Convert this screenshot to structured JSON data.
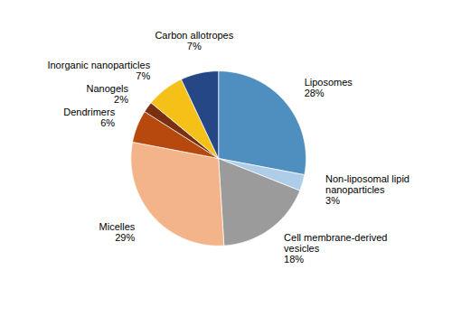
{
  "chart_data": {
    "type": "pie",
    "categories": [
      "Liposomes",
      "Non-liposomal lipid\nnanoparticles",
      "Cell membrane-derived\nvesicles",
      "Micelles",
      "Dendrimers",
      "Nanogels",
      "Inorganic nanoparticles",
      "Carbon allotropes"
    ],
    "values": [
      28,
      3,
      18,
      29,
      6,
      2,
      7,
      7
    ],
    "value_labels": [
      "28%",
      "3%",
      "18%",
      "29%",
      "6%",
      "2%",
      "7%",
      "7%"
    ],
    "colors": [
      "#4E8FBF",
      "#AECDE8",
      "#9B9B9B",
      "#F4B48A",
      "#B8490E",
      "#7A3010",
      "#F5C118",
      "#254785"
    ],
    "data_labels": true
  }
}
